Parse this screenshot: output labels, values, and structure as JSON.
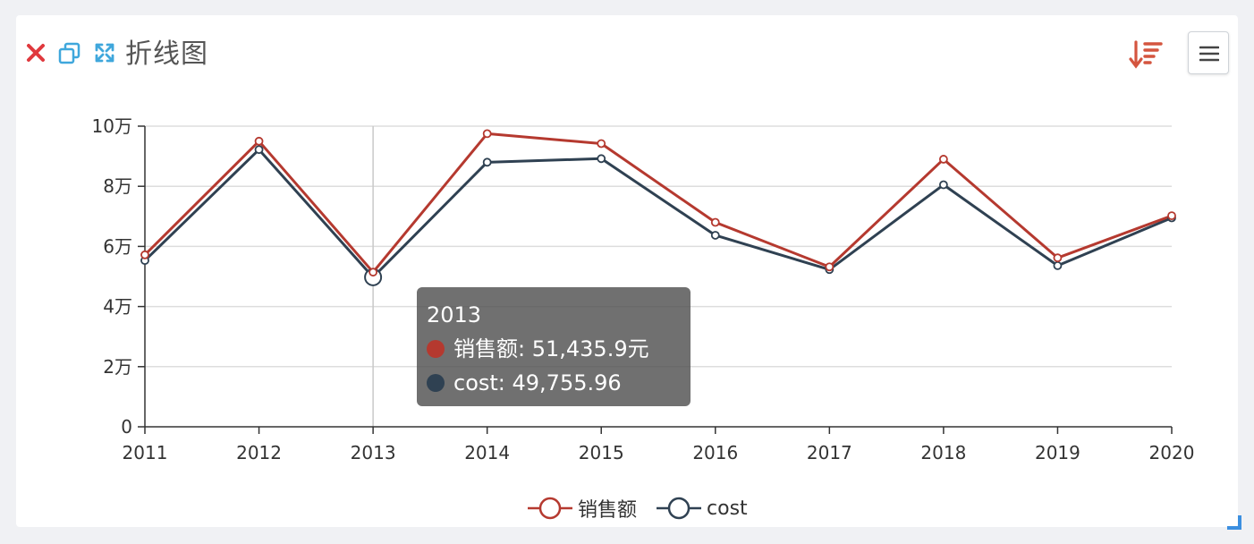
{
  "panel": {
    "title": "折线图",
    "close_icon": "close-icon",
    "copy_icon": "copy-icon",
    "expand_icon": "expand-icon",
    "sort_icon": "sort-descending-icon",
    "menu_icon": "hamburger-menu-icon"
  },
  "colors": {
    "sales": "#b5392f",
    "cost": "#2f4152",
    "close": "#e0393e",
    "toolbar_blue": "#3fa7dc",
    "sort": "#d4553f",
    "grid": "#dddddd"
  },
  "chart_data": {
    "type": "line",
    "title": "",
    "categories": [
      "2011",
      "2012",
      "2013",
      "2014",
      "2015",
      "2016",
      "2017",
      "2018",
      "2019",
      "2020"
    ],
    "series": [
      {
        "name": "销售额",
        "color": "#b5392f",
        "values": [
          57200,
          95000,
          51435.9,
          97500,
          94200,
          68000,
          53200,
          89000,
          56200,
          70200
        ]
      },
      {
        "name": "cost",
        "color": "#2f4152",
        "values": [
          55300,
          92200,
          49755.96,
          88000,
          89200,
          63700,
          52300,
          80500,
          53600,
          69500
        ]
      }
    ],
    "ylim": [
      0,
      100000
    ],
    "yticks": [
      0,
      20000,
      40000,
      60000,
      80000,
      100000
    ],
    "ytick_labels": [
      "0",
      "2万",
      "4万",
      "6万",
      "8万",
      "10万"
    ],
    "grid": true,
    "legend_position": "bottom-center",
    "highlight_index": 2
  },
  "tooltip": {
    "title": "2013",
    "rows": [
      {
        "label": "销售额: 51,435.9元",
        "color": "#b5392f"
      },
      {
        "label": "cost: 49,755.96",
        "color": "#2f4152"
      }
    ]
  },
  "legend": [
    {
      "label": "销售额",
      "color": "#b5392f"
    },
    {
      "label": "cost",
      "color": "#2f4152"
    }
  ]
}
